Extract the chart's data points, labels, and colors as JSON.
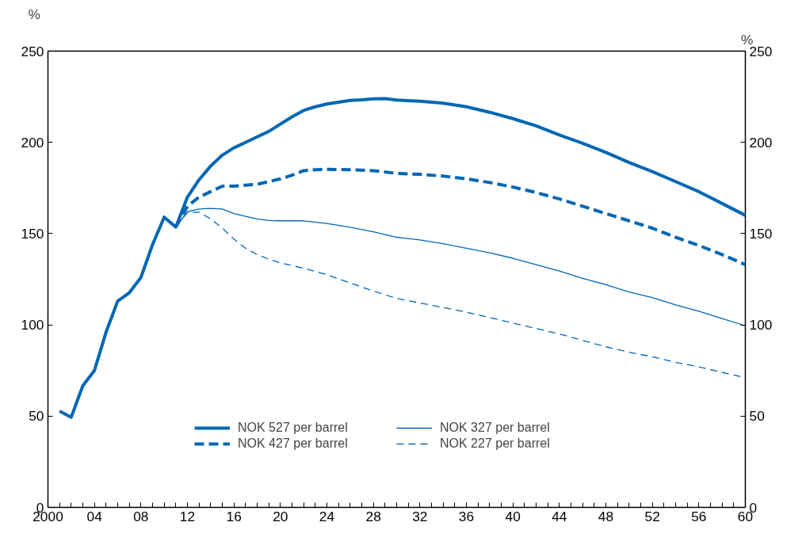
{
  "chart_data": {
    "type": "line",
    "ylabel": "%",
    "y2label": "%",
    "xlim": [
      2000,
      2060
    ],
    "xticks": [
      {
        "value": 2000,
        "label": "2000"
      },
      {
        "value": 2001,
        "label": null
      },
      {
        "value": 2002,
        "label": null
      },
      {
        "value": 2003,
        "label": null
      },
      {
        "value": 2004,
        "label": "04"
      },
      {
        "value": 2005,
        "label": null
      },
      {
        "value": 2006,
        "label": null
      },
      {
        "value": 2007,
        "label": null
      },
      {
        "value": 2008,
        "label": "08"
      },
      {
        "value": 2009,
        "label": null
      },
      {
        "value": 2010,
        "label": null
      },
      {
        "value": 2011,
        "label": null
      },
      {
        "value": 2012,
        "label": "12"
      },
      {
        "value": 2013,
        "label": null
      },
      {
        "value": 2014,
        "label": null
      },
      {
        "value": 2015,
        "label": null
      },
      {
        "value": 2016,
        "label": "16"
      },
      {
        "value": 2017,
        "label": null
      },
      {
        "value": 2018,
        "label": null
      },
      {
        "value": 2019,
        "label": null
      },
      {
        "value": 2020,
        "label": "20"
      },
      {
        "value": 2021,
        "label": null
      },
      {
        "value": 2022,
        "label": null
      },
      {
        "value": 2023,
        "label": null
      },
      {
        "value": 2024,
        "label": "24"
      },
      {
        "value": 2025,
        "label": null
      },
      {
        "value": 2026,
        "label": null
      },
      {
        "value": 2027,
        "label": null
      },
      {
        "value": 2028,
        "label": "28"
      },
      {
        "value": 2029,
        "label": null
      },
      {
        "value": 2030,
        "label": null
      },
      {
        "value": 2031,
        "label": null
      },
      {
        "value": 2032,
        "label": "32"
      },
      {
        "value": 2033,
        "label": null
      },
      {
        "value": 2034,
        "label": null
      },
      {
        "value": 2035,
        "label": null
      },
      {
        "value": 2036,
        "label": "36"
      },
      {
        "value": 2037,
        "label": null
      },
      {
        "value": 2038,
        "label": null
      },
      {
        "value": 2039,
        "label": null
      },
      {
        "value": 2040,
        "label": "40"
      },
      {
        "value": 2041,
        "label": null
      },
      {
        "value": 2042,
        "label": null
      },
      {
        "value": 2043,
        "label": null
      },
      {
        "value": 2044,
        "label": "44"
      },
      {
        "value": 2045,
        "label": null
      },
      {
        "value": 2046,
        "label": null
      },
      {
        "value": 2047,
        "label": null
      },
      {
        "value": 2048,
        "label": "48"
      },
      {
        "value": 2049,
        "label": null
      },
      {
        "value": 2050,
        "label": null
      },
      {
        "value": 2051,
        "label": null
      },
      {
        "value": 2052,
        "label": "52"
      },
      {
        "value": 2053,
        "label": null
      },
      {
        "value": 2054,
        "label": null
      },
      {
        "value": 2055,
        "label": null
      },
      {
        "value": 2056,
        "label": "56"
      },
      {
        "value": 2057,
        "label": null
      },
      {
        "value": 2058,
        "label": null
      },
      {
        "value": 2059,
        "label": null
      },
      {
        "value": 2060,
        "label": "60"
      }
    ],
    "ylim": [
      0,
      250
    ],
    "yticks": [
      0,
      50,
      100,
      150,
      200,
      250
    ],
    "y2lim": [
      0,
      250
    ],
    "y2ticks": [
      0,
      50,
      100,
      150,
      200,
      250
    ],
    "grid": false,
    "legend": "bottom",
    "marker": "none",
    "series": [
      {
        "name": "NOK 527 per barrel",
        "color": "#0067b4",
        "line_style": "solid",
        "x": [
          2001,
          2002,
          2003,
          2004,
          2005,
          2006,
          2007,
          2008,
          2009,
          2010,
          2011,
          2012,
          2013,
          2014,
          2015,
          2016,
          2017,
          2018,
          2019,
          2020,
          2021,
          2022,
          2023,
          2024,
          2025,
          2026,
          2027,
          2028,
          2029,
          2030,
          2032,
          2034,
          2036,
          2038,
          2040,
          2042,
          2044,
          2046,
          2048,
          2050,
          2052,
          2054,
          2056,
          2058,
          2060
        ],
        "values": [
          52.7,
          49.4,
          66.6,
          75,
          96,
          113,
          117.6,
          126,
          144,
          159,
          153.6,
          170,
          179.5,
          187,
          193,
          197,
          200,
          203,
          206,
          210,
          214,
          217.5,
          219.5,
          221,
          222,
          223,
          223.3,
          223.8,
          224,
          223.2,
          222.5,
          221.5,
          219.5,
          216.5,
          213,
          209,
          204,
          199.5,
          194.5,
          189,
          184,
          178.5,
          173,
          166.5,
          160
        ]
      },
      {
        "name": "NOK 427 per barrel",
        "color": "#0067b4",
        "line_style": "dashed",
        "x": [
          2011,
          2012,
          2013,
          2014,
          2015,
          2016,
          2017,
          2018,
          2019,
          2020,
          2021,
          2022,
          2023,
          2024,
          2026,
          2028,
          2030,
          2032,
          2034,
          2036,
          2038,
          2040,
          2042,
          2044,
          2046,
          2048,
          2050,
          2052,
          2054,
          2056,
          2058,
          2060
        ],
        "values": [
          153.6,
          165,
          170,
          173,
          176,
          176,
          176.5,
          177,
          178.5,
          180,
          182,
          184.5,
          185,
          185.2,
          185,
          184.5,
          183,
          182.5,
          181.5,
          180,
          178,
          175.5,
          172.5,
          169,
          165,
          161,
          157,
          153,
          148,
          143.5,
          138.5,
          133
        ]
      },
      {
        "name": "NOK 327 per barrel",
        "color": "#0067b4",
        "line_style": "solid",
        "x": [
          2011,
          2012,
          2013,
          2014,
          2015,
          2016,
          2017,
          2018,
          2019,
          2020,
          2022,
          2024,
          2026,
          2028,
          2030,
          2032,
          2034,
          2036,
          2038,
          2040,
          2042,
          2044,
          2046,
          2048,
          2050,
          2052,
          2054,
          2056,
          2058,
          2060
        ],
        "values": [
          153.6,
          162,
          163.5,
          163.8,
          163.5,
          161,
          159.5,
          158,
          157.2,
          157,
          157,
          155.5,
          153.5,
          151,
          148,
          146.5,
          144.5,
          142,
          139.5,
          136.5,
          133,
          129.5,
          125.5,
          122,
          118,
          115,
          111,
          107.5,
          103.5,
          99.5
        ]
      },
      {
        "name": "NOK 227 per barrel",
        "color": "#0067b4",
        "line_style": "dashed",
        "x": [
          2011,
          2012,
          2013,
          2014,
          2015,
          2016,
          2017,
          2018,
          2019,
          2020,
          2022,
          2024,
          2026,
          2028,
          2030,
          2032,
          2034,
          2036,
          2038,
          2040,
          2042,
          2044,
          2046,
          2048,
          2050,
          2052,
          2054,
          2056,
          2058,
          2060
        ],
        "values": [
          153.6,
          161.5,
          161.8,
          158,
          153,
          147,
          142,
          138.5,
          136,
          134,
          131,
          127.5,
          123,
          118.5,
          114.5,
          112,
          109.5,
          107,
          104,
          101,
          98,
          95,
          91.5,
          88,
          85,
          82.5,
          79.5,
          77,
          74,
          71
        ]
      }
    ]
  }
}
